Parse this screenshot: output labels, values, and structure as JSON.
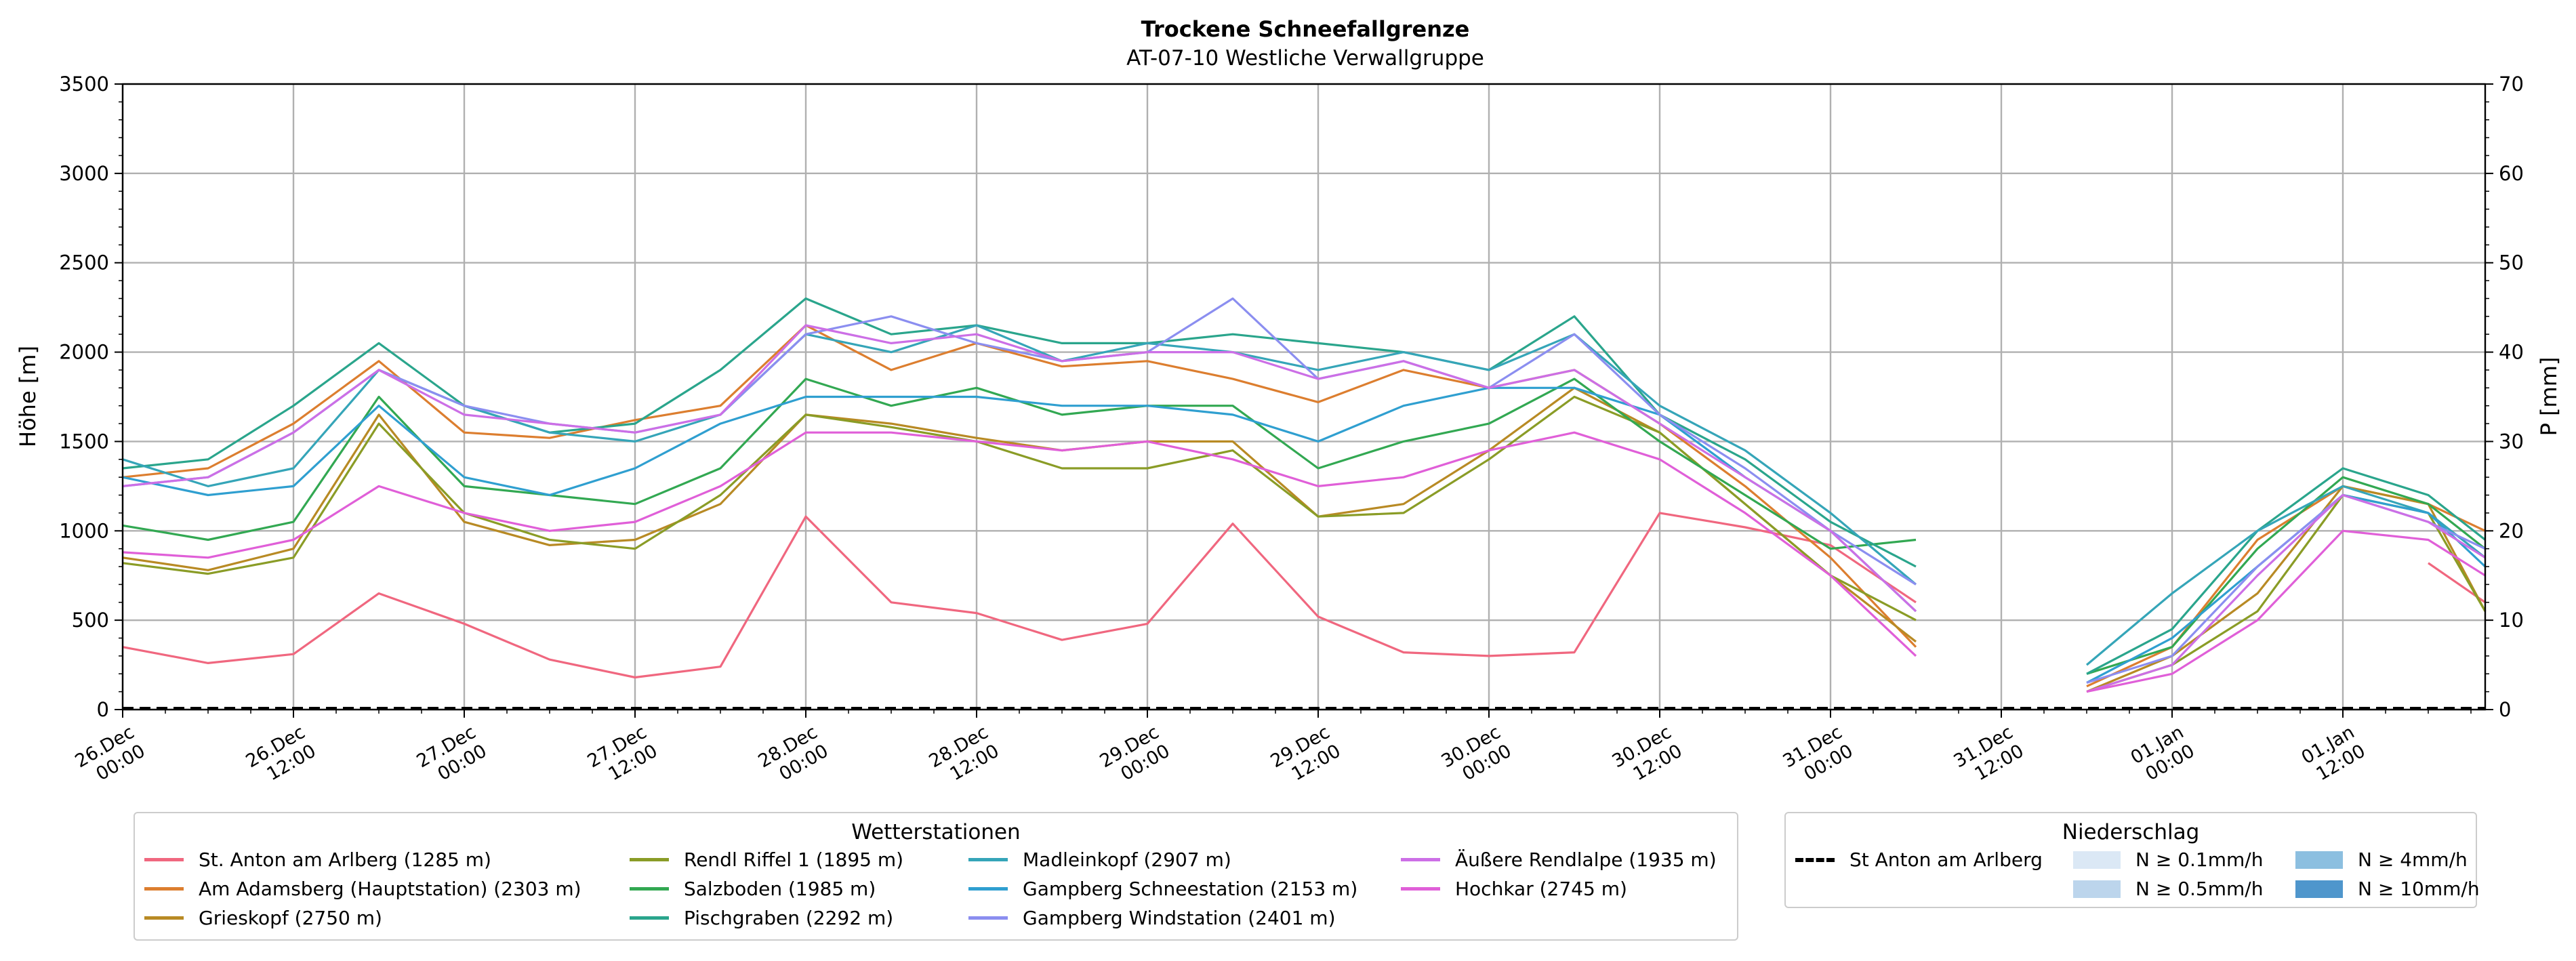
{
  "chart_data": {
    "type": "line",
    "title": "Trockene Schneefallgrenze",
    "subtitle": "AT-07-10 Westliche Verwallgruppe",
    "ylabel": "Höhe [m]",
    "y2label": "P [mm]",
    "ylim": [
      0,
      3500
    ],
    "y2lim": [
      0,
      70
    ],
    "yticks": [
      "0",
      "500",
      "1000",
      "1500",
      "2000",
      "2500",
      "3000",
      "3500"
    ],
    "y2ticks": [
      "0",
      "10",
      "20",
      "30",
      "40",
      "50",
      "60",
      "70"
    ],
    "xlim_hours": [
      0,
      166
    ],
    "xticks": [
      {
        "date": "26.Dec",
        "time": "00:00"
      },
      {
        "date": "26.Dec",
        "time": "12:00"
      },
      {
        "date": "27.Dec",
        "time": "00:00"
      },
      {
        "date": "27.Dec",
        "time": "12:00"
      },
      {
        "date": "28.Dec",
        "time": "00:00"
      },
      {
        "date": "28.Dec",
        "time": "12:00"
      },
      {
        "date": "29.Dec",
        "time": "00:00"
      },
      {
        "date": "29.Dec",
        "time": "12:00"
      },
      {
        "date": "30.Dec",
        "time": "00:00"
      },
      {
        "date": "30.Dec",
        "time": "12:00"
      },
      {
        "date": "31.Dec",
        "time": "00:00"
      },
      {
        "date": "31.Dec",
        "time": "12:00"
      },
      {
        "date": "01.Jan",
        "time": "00:00"
      },
      {
        "date": "01.Jan",
        "time": "12:00"
      }
    ],
    "grid": true,
    "x_hours": [
      0,
      6,
      12,
      18,
      24,
      30,
      36,
      42,
      48,
      54,
      60,
      66,
      72,
      78,
      84,
      90,
      96,
      102,
      108,
      114,
      120,
      126,
      132,
      138,
      144,
      150,
      156,
      162,
      166
    ],
    "series": [
      {
        "name": "St. Anton am Arlberg (1285 m)",
        "color": "#f0677f",
        "values": [
          350,
          260,
          310,
          650,
          480,
          280,
          180,
          240,
          1080,
          600,
          540,
          390,
          480,
          1040,
          520,
          320,
          300,
          320,
          1100,
          1020,
          920,
          600,
          null,
          null,
          null,
          null,
          null,
          820,
          600
        ]
      },
      {
        "name": "Am Adamsberg (Hauptstation) (2303 m)",
        "color": "#dc7e2f",
        "values": [
          1300,
          1350,
          1600,
          1950,
          1550,
          1520,
          1620,
          1700,
          2150,
          1900,
          2050,
          1920,
          1950,
          1850,
          1720,
          1900,
          1800,
          1900,
          1600,
          1250,
          850,
          350,
          null,
          130,
          350,
          950,
          1250,
          1150,
          1000
        ]
      },
      {
        "name": "Grieskopf (2750 m)",
        "color": "#b88a24",
        "values": [
          850,
          780,
          900,
          1650,
          1050,
          920,
          950,
          1150,
          1650,
          1600,
          1520,
          1450,
          1500,
          1500,
          1080,
          1150,
          1450,
          1800,
          1550,
          1150,
          750,
          380,
          null,
          100,
          300,
          650,
          1250,
          1150,
          550
        ]
      },
      {
        "name": "Rendl Riffel 1 (1895 m)",
        "color": "#8a9c26",
        "values": [
          820,
          760,
          850,
          1600,
          1100,
          950,
          900,
          1200,
          1650,
          1580,
          1500,
          1350,
          1350,
          1450,
          1080,
          1100,
          1400,
          1750,
          1550,
          1150,
          750,
          500,
          null,
          100,
          250,
          550,
          1200,
          1100,
          550
        ]
      },
      {
        "name": "Salzboden (1985 m)",
        "color": "#32a852",
        "values": [
          1030,
          950,
          1050,
          1750,
          1250,
          1200,
          1150,
          1350,
          1850,
          1700,
          1800,
          1650,
          1700,
          1700,
          1350,
          1500,
          1600,
          1850,
          1500,
          1200,
          900,
          950,
          null,
          200,
          350,
          900,
          1300,
          1150,
          900
        ]
      },
      {
        "name": "Pischgraben (2292 m)",
        "color": "#2aa58c",
        "values": [
          1350,
          1400,
          1700,
          2050,
          1700,
          1550,
          1600,
          1900,
          2300,
          2100,
          2150,
          2050,
          2050,
          2100,
          2050,
          2000,
          1900,
          2200,
          1650,
          1400,
          1050,
          800,
          null,
          200,
          450,
          1000,
          1350,
          1200,
          950
        ]
      },
      {
        "name": "Madleinkopf (2907 m)",
        "color": "#35a5b8",
        "values": [
          1400,
          1250,
          1350,
          1900,
          1700,
          1550,
          1500,
          1650,
          2100,
          2000,
          2150,
          1950,
          2050,
          2000,
          1900,
          2000,
          1900,
          2100,
          1700,
          1450,
          1100,
          700,
          null,
          250,
          650,
          1000,
          1250,
          1100,
          850
        ]
      },
      {
        "name": "Gampberg Schneestation (2153 m)",
        "color": "#2f9fd0",
        "values": [
          1300,
          1200,
          1250,
          1700,
          1300,
          1200,
          1350,
          1600,
          1750,
          1750,
          1750,
          1700,
          1700,
          1650,
          1500,
          1700,
          1800,
          1800,
          1650,
          1300,
          1000,
          550,
          null,
          150,
          400,
          800,
          1200,
          1100,
          800
        ]
      },
      {
        "name": "Gampberg Windstation (2401 m)",
        "color": "#8b8ef0",
        "values": [
          1250,
          1300,
          1550,
          1900,
          1700,
          1600,
          1550,
          1650,
          2100,
          2200,
          2050,
          1950,
          2000,
          2300,
          1850,
          1950,
          1800,
          2100,
          1650,
          1350,
          1000,
          700,
          null,
          150,
          300,
          800,
          1200,
          1050,
          900
        ]
      },
      {
        "name": "Äußere Rendlalpe (1935 m)",
        "color": "#cc6fe6",
        "values": [
          1250,
          1300,
          1550,
          1900,
          1650,
          1600,
          1550,
          1650,
          2150,
          2050,
          2100,
          1950,
          2000,
          2000,
          1850,
          1950,
          1800,
          1900,
          1600,
          1300,
          1000,
          550,
          null,
          100,
          250,
          750,
          1200,
          1050,
          850
        ]
      },
      {
        "name": "Hochkar (2745 m)",
        "color": "#e05fd8",
        "values": [
          880,
          850,
          950,
          1250,
          1100,
          1000,
          1050,
          1250,
          1550,
          1550,
          1500,
          1450,
          1500,
          1400,
          1250,
          1300,
          1450,
          1550,
          1400,
          1100,
          750,
          300,
          null,
          100,
          200,
          500,
          1000,
          950,
          750
        ]
      }
    ],
    "legend_title": "Wetterstationen",
    "legend_placement": "bottom-left",
    "precip_legend": {
      "title": "Niederschlag",
      "line_label": "St Anton am Arlberg",
      "items": [
        {
          "label": "N ≥ 0.1mm/h",
          "color": "#dbe8f5"
        },
        {
          "label": "N ≥ 4mm/h",
          "color": "#8cbfe0"
        },
        {
          "label": "N ≥ 0.5mm/h",
          "color": "#bcd5ec"
        },
        {
          "label": "N ≥ 10mm/h",
          "color": "#4f96cc"
        }
      ],
      "precip_values": [
        0,
        0
      ]
    }
  }
}
